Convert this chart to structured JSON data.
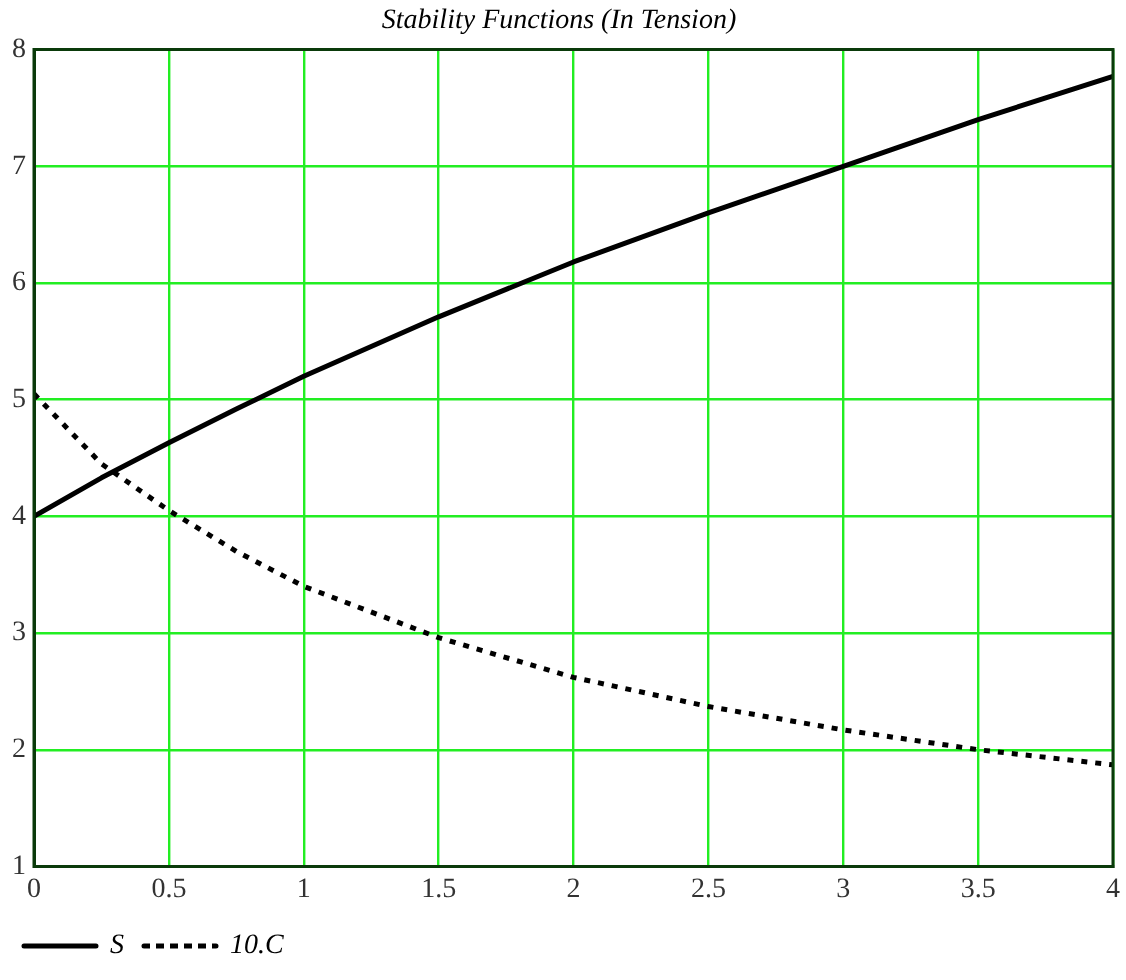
{
  "chart_data": {
    "type": "line",
    "title": "Stability Functions (In Tension)",
    "x": [
      0,
      0.25,
      0.5,
      0.75,
      1,
      1.5,
      2,
      2.5,
      3,
      3.5,
      4
    ],
    "series": [
      {
        "name": "S",
        "color": "#000000",
        "line_style": "solid",
        "values": [
          4.0,
          4.33,
          4.63,
          4.92,
          5.2,
          5.71,
          6.18,
          6.6,
          7.0,
          7.4,
          7.77
        ]
      },
      {
        "name": "10.C",
        "color": "#000000",
        "line_style": "dotted",
        "values": [
          5.05,
          4.45,
          4.05,
          3.7,
          3.4,
          2.96,
          2.62,
          2.37,
          2.17,
          2.0,
          1.87
        ]
      }
    ],
    "xlim": [
      0,
      4
    ],
    "xticks": [
      0,
      0.5,
      1,
      1.5,
      2,
      2.5,
      3,
      3.5,
      4
    ],
    "ylim": [
      1,
      8
    ],
    "yticks": [
      1,
      2,
      3,
      4,
      5,
      6,
      7,
      8
    ],
    "grid": true,
    "legend": "bottom left",
    "marker": "none"
  }
}
